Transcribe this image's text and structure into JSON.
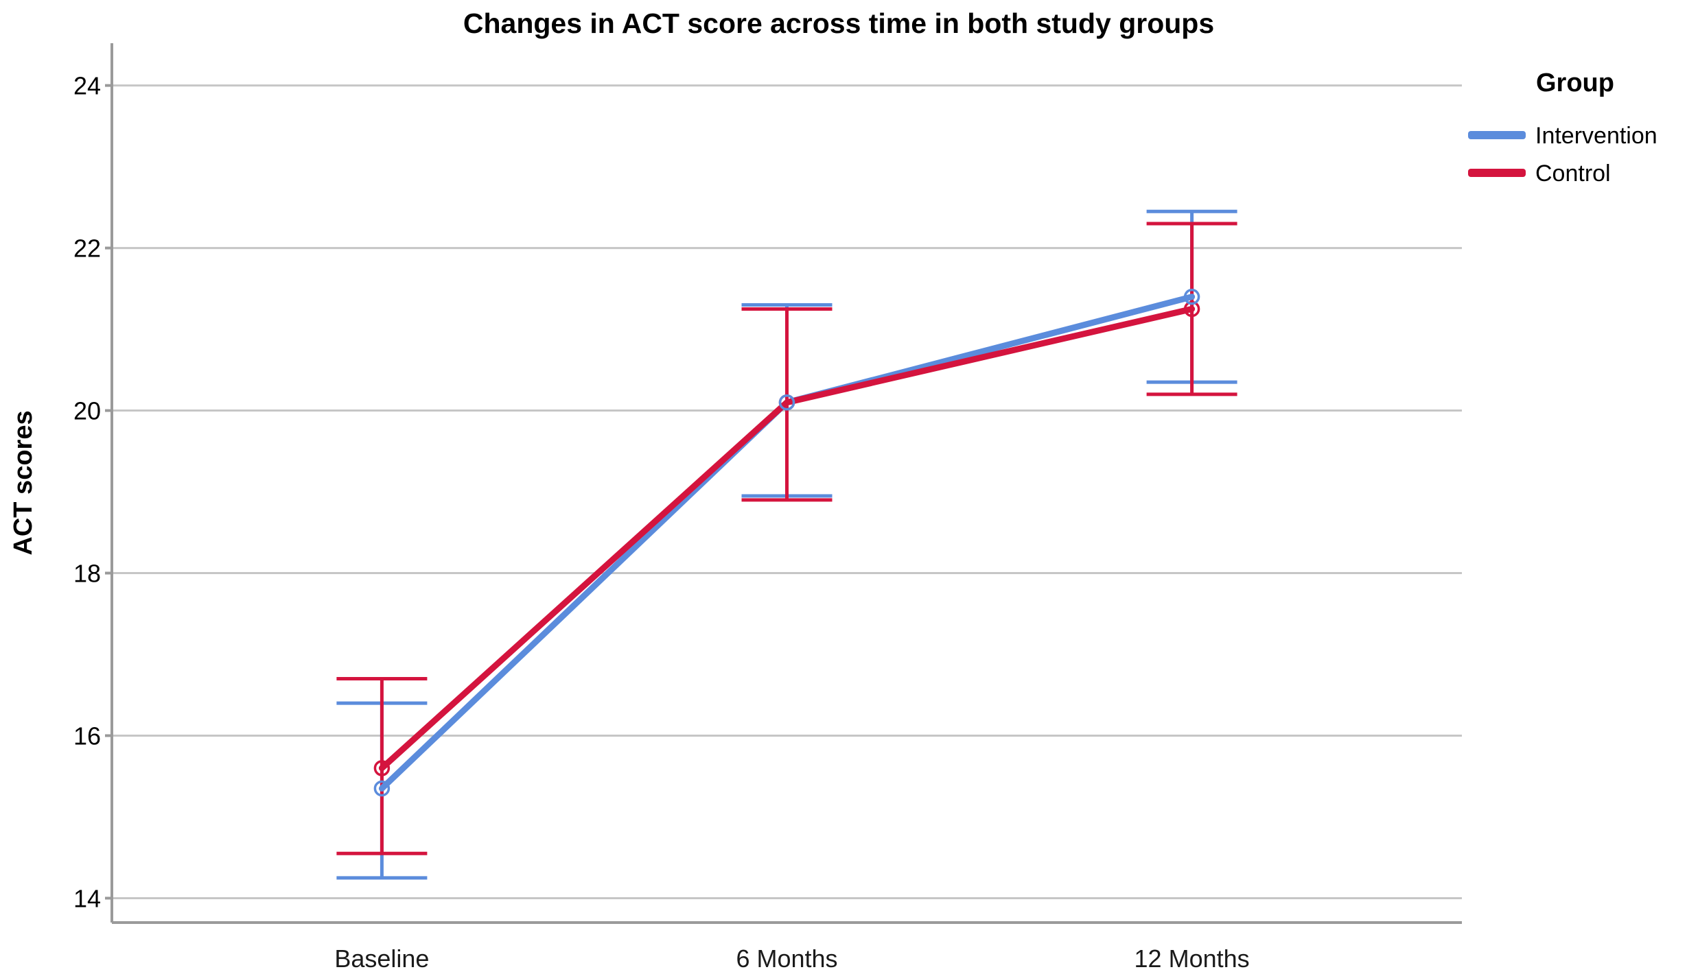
{
  "chart_data": {
    "type": "line",
    "title": "Changes in ACT score across time in both study groups",
    "ylabel": "ACT scores",
    "xlabel": "",
    "categories": [
      "Baseline",
      "6 Months",
      "12 Months"
    ],
    "y_ticks": [
      14,
      16,
      18,
      20,
      22,
      24
    ],
    "ylim": [
      13.7,
      24.52
    ],
    "grid": "horizontal-only",
    "marker": "open-circle",
    "legend": {
      "title": "Group",
      "position": "outside-top-right",
      "entries": [
        "Intervention",
        "Control"
      ]
    },
    "series": [
      {
        "name": "Intervention",
        "color": "#5B8CDC",
        "values": [
          15.35,
          20.1,
          21.4
        ],
        "ci_low": [
          14.25,
          18.95,
          20.35
        ],
        "ci_high": [
          16.4,
          21.3,
          22.45
        ]
      },
      {
        "name": "Control",
        "color": "#D4143E",
        "values": [
          15.6,
          20.1,
          21.25
        ],
        "ci_low": [
          14.55,
          18.9,
          20.2
        ],
        "ci_high": [
          16.7,
          21.25,
          22.3
        ]
      }
    ],
    "colors": {
      "grid": "#C6C6C6",
      "axis": "#9A9A9A",
      "text": "#000000",
      "background": "#FFFFFF"
    }
  }
}
